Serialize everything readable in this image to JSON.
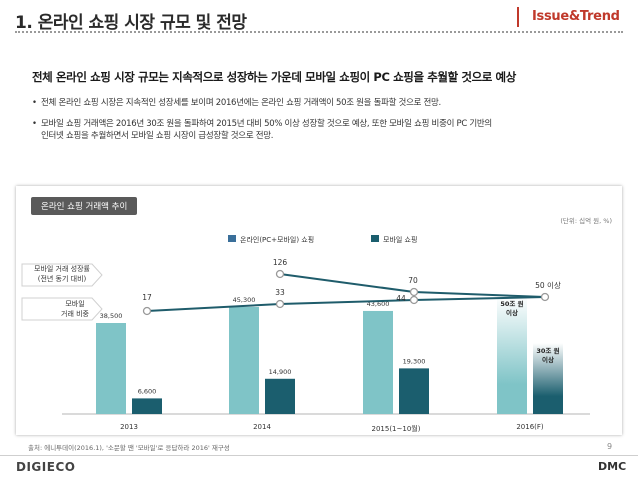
{
  "header": {
    "title": "1. 온라인 쇼핑 시장 규모 및 전망",
    "tag": "Issue&Trend"
  },
  "headline": "전체 온라인 쇼핑 시장 규모는 지속적으로 성장하는 가운데 모바일 쇼핑이 PC 쇼핑을 추월할 것으로 예상",
  "bullets": [
    {
      "line1": "전체 온라인 쇼핑 시장은 지속적인 성장세를 보이며 2016년에는 온라인 쇼핑 거래액이 50조 원을 돌파할 것으로 전망."
    },
    {
      "line1": "모바일 쇼핑 거래액은 2016년 30조 원을 돌파하여 2015년 대비 50% 이상 성장할 것으로 예상, 또한 모바일 쇼핑 비중이 PC 기반의",
      "line2": "인터넷 쇼핑을 추월하면서 모바일 쇼핑 시장이 급성장할 것으로 전망."
    }
  ],
  "chart_box_label": "온라인 쇼핑 거래액 추이",
  "chart_data": {
    "type": "bar",
    "unit_note": "(단위: 십억 원, %)",
    "categories": [
      "2013",
      "2014",
      "2015(1~10월)",
      "2016(F)"
    ],
    "series": [
      {
        "name": "온라인(PC+모바일) 쇼핑",
        "color": "#7fc4c7",
        "values": [
          38500,
          45300,
          43600,
          50000
        ],
        "labels": [
          "38,500",
          "45,300",
          "43,600",
          "50조 원 이상"
        ]
      },
      {
        "name": "모바일 쇼핑",
        "color": "#1b5e6e",
        "values": [
          6600,
          14900,
          19300,
          30000
        ],
        "labels": [
          "6,600",
          "14,900",
          "19,300",
          "30조 원 이상"
        ]
      }
    ],
    "lines": [
      {
        "name": "모바일 거래 성장률 (전년 동기 대비)",
        "label_line1": "모바일 거래 성장률",
        "label_line2": "(전년 동기 대비)",
        "values": [
          null,
          126,
          70,
          null
        ],
        "labels": [
          "",
          "126",
          "70",
          ""
        ]
      },
      {
        "name": "모바일 거래 비중",
        "label_line1": "모바일",
        "label_line2": "거래 비중",
        "values": [
          17,
          33,
          44,
          null
        ],
        "labels": [
          "17",
          "33",
          "44",
          ""
        ]
      }
    ],
    "end_label": "50 이상",
    "ylim": [
      0,
      55000
    ]
  },
  "source": "출처: 에니투데이(2016.1), '소문할 땐 '모바일'로 응답하라 2016' 재구성",
  "page_number": "9",
  "footer": {
    "logo_left": "DIGIECO",
    "logo_right": "DMC"
  },
  "colors": {
    "accent": "#c0392b",
    "bar_light": "#7fc4c7",
    "bar_dark": "#1b5e6e",
    "line": "#1f5c6b"
  }
}
